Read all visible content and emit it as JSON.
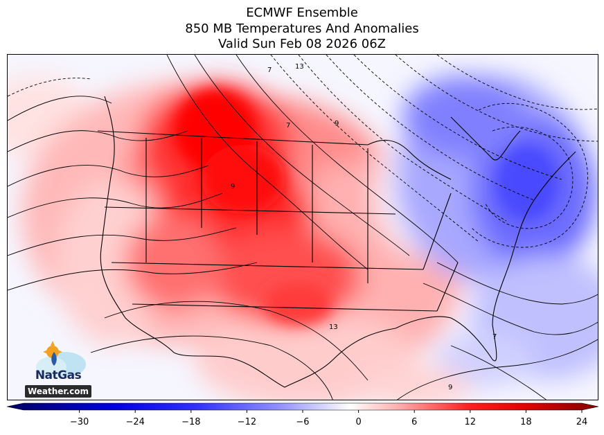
{
  "title": {
    "line1": "ECMWF Ensemble",
    "line2": "850 MB Temperatures And Anomalies",
    "line3": "Valid Sun Feb 08 2026 06Z"
  },
  "colorbar": {
    "min": -36,
    "max": 24,
    "ticks": [
      "−30",
      "−24",
      "−18",
      "−12",
      "−6",
      "0",
      "6",
      "12",
      "18",
      "24"
    ],
    "tick_values": [
      -30,
      -24,
      -18,
      -12,
      -6,
      0,
      6,
      12,
      18,
      24
    ],
    "colors": {
      "cold_extreme": "#000080",
      "cold": "#0000ff",
      "neutral": "#ffffff",
      "warm": "#ff0000",
      "warm_extreme": "#800000"
    }
  },
  "map": {
    "contour_labels": [
      "7",
      "13",
      "9",
      "7",
      "13",
      "9",
      "7",
      "9"
    ]
  },
  "logo": {
    "line1": "NatGas",
    "line2": "Weather.com"
  }
}
